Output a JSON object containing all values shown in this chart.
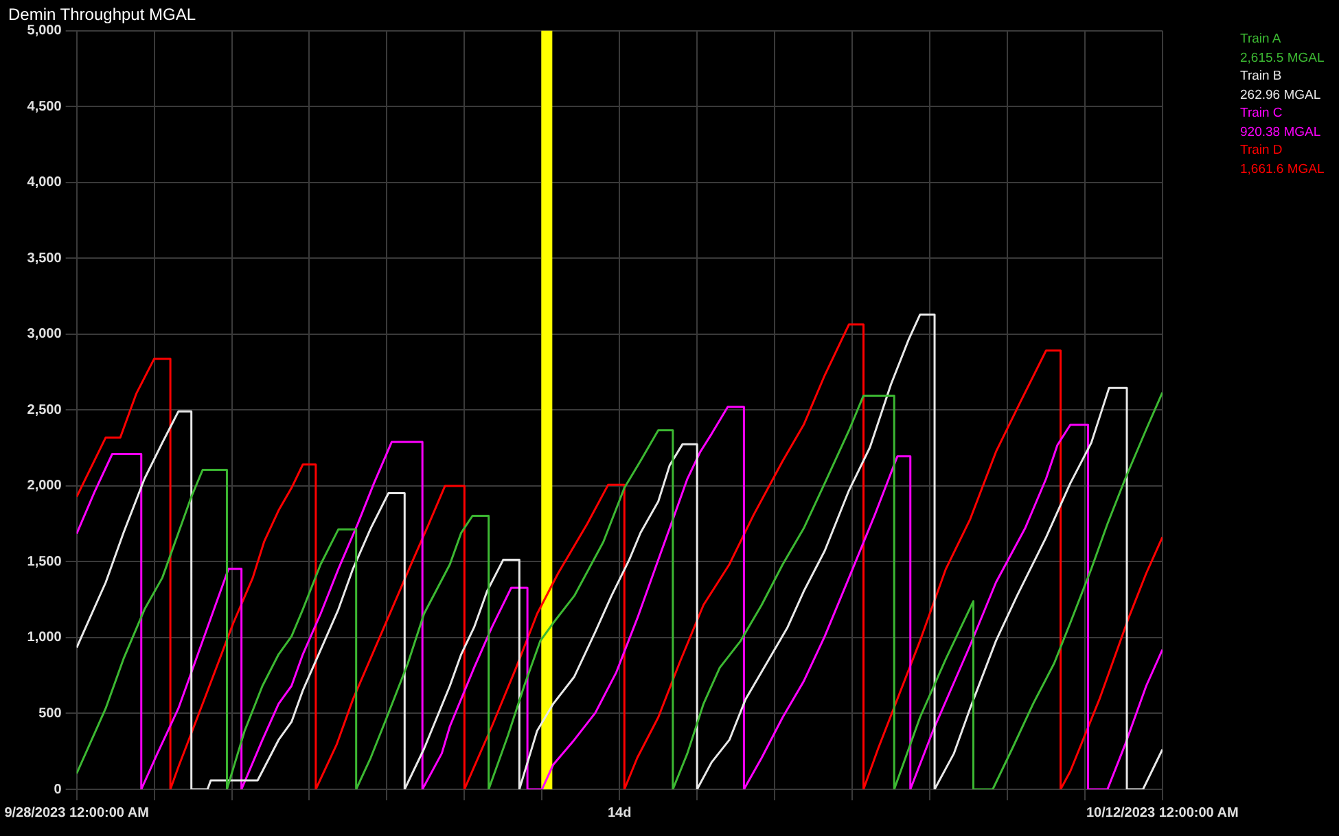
{
  "chart_data": {
    "type": "line",
    "title": "Demin Throughput MGAL",
    "xlim": [
      "2023-09-28T00:00",
      "2023-10-12T00:00"
    ],
    "xticks": [
      {
        "value": "2023-09-28",
        "label": "9/28/2023 12:00:00 AM"
      },
      {
        "value": "2023-09-29",
        "label": null
      },
      {
        "value": "2023-09-30",
        "label": null
      },
      {
        "value": "2023-10-01",
        "label": null
      },
      {
        "value": "2023-10-02",
        "label": null
      },
      {
        "value": "2023-10-03",
        "label": null
      },
      {
        "value": "2023-10-04",
        "label": null
      },
      {
        "value": "2023-10-05",
        "label": "14d"
      },
      {
        "value": "2023-10-06",
        "label": null
      },
      {
        "value": "2023-10-07",
        "label": null
      },
      {
        "value": "2023-10-08",
        "label": null
      },
      {
        "value": "2023-10-09",
        "label": null
      },
      {
        "value": "2023-10-10",
        "label": null
      },
      {
        "value": "2023-10-11",
        "label": null
      },
      {
        "value": "2023-10-12",
        "label": "10/12/2023 12:00:00 AM"
      }
    ],
    "ylim": [
      0,
      5000
    ],
    "yticks": [
      0,
      500,
      {
        "value": 1000,
        "label": "1,000"
      },
      {
        "value": 1500,
        "label": "1,500"
      },
      {
        "value": 2000,
        "label": "2,000"
      },
      {
        "value": 2500,
        "label": "2,500"
      },
      {
        "value": 3000,
        "label": "3,000"
      },
      {
        "value": 3500,
        "label": "3,500"
      },
      {
        "value": 4000,
        "label": "4,000"
      },
      {
        "value": 4500,
        "label": "4,500"
      },
      {
        "value": 5000,
        "label": "5,000"
      }
    ],
    "grid": true,
    "legend": "right",
    "ref_lines": [
      {
        "axis": "x",
        "value": "2023-10-04T01:30",
        "color": "#ffff00"
      }
    ],
    "annotations": [
      "2,615.5 MGAL",
      "262.96 MGAL",
      "920.38 MGAL",
      "1,661.6 MGAL"
    ],
    "series": [
      {
        "name": "Train A",
        "color": "#3cb832",
        "x": [
          "2023-09-28T00:00",
          "2023-09-28T09:00",
          "2023-09-28T14:30",
          "2023-09-28T21:00",
          "2023-09-29T02:30",
          "2023-09-29T07:30",
          "2023-09-29T11:30",
          "2023-09-29T15:00",
          "2023-09-29T22:30",
          "2023-09-29T22:30",
          "2023-09-30T04:00",
          "2023-09-30T09:30",
          "2023-09-30T14:30",
          "2023-09-30T18:30",
          "2023-09-30T22:00",
          "2023-10-01T03:30",
          "2023-10-01T09:00",
          "2023-10-01T14:30",
          "2023-10-01T14:30",
          "2023-10-01T19:00",
          "2023-10-02T00:00",
          "2023-10-02T06:30",
          "2023-10-02T11:30",
          "2023-10-02T19:30",
          "2023-10-02T23:00",
          "2023-10-03T02:30",
          "2023-10-03T07:30",
          "2023-10-03T07:30",
          "2023-10-03T13:30",
          "2023-10-03T18:30",
          "2023-10-03T23:30",
          "2023-10-04T03:30",
          "2023-10-04T10:00",
          "2023-10-04T19:00",
          "2023-10-05T01:30",
          "2023-10-05T06:30",
          "2023-10-05T12:00",
          "2023-10-05T16:30",
          "2023-10-05T16:30",
          "2023-10-05T21:00",
          "2023-10-06T02:00",
          "2023-10-06T07:00",
          "2023-10-06T13:30",
          "2023-10-06T20:00",
          "2023-10-07T02:30",
          "2023-10-07T09:00",
          "2023-10-07T15:30",
          "2023-10-07T23:00",
          "2023-10-08T03:30",
          "2023-10-08T13:00",
          "2023-10-08T13:00",
          "2023-10-08T21:00",
          "2023-10-09T05:00",
          "2023-10-09T13:30",
          "2023-10-09T13:30",
          "2023-10-09T19:30",
          "2023-10-10T01:30",
          "2023-10-10T08:00",
          "2023-10-10T14:30",
          "2023-10-10T19:30",
          "2023-10-11T02:00",
          "2023-10-11T07:00",
          "2023-10-11T12:30",
          "2023-10-11T19:00",
          "2023-10-12T00:00"
        ],
        "values": [
          104,
          534,
          860,
          1186,
          1394,
          1691,
          1928,
          2106,
          2106,
          0,
          386,
          682,
          890,
          1008,
          1186,
          1483,
          1714,
          1714,
          0,
          208,
          475,
          830,
          1157,
          1483,
          1691,
          1803,
          1803,
          0,
          356,
          682,
          979,
          1097,
          1275,
          1631,
          1987,
          2165,
          2367,
          2367,
          0,
          237,
          564,
          801,
          979,
          1216,
          1483,
          1720,
          2017,
          2365,
          2595,
          2595,
          0,
          475,
          860,
          1240,
          0,
          0,
          267,
          564,
          830,
          1097,
          1453,
          1750,
          2047,
          2373,
          2615.5
        ]
      },
      {
        "name": "Train B",
        "color": "#e8e8e8",
        "x": [
          "2023-09-28T00:00",
          "2023-09-28T09:00",
          "2023-09-28T14:30",
          "2023-09-28T21:00",
          "2023-09-29T02:30",
          "2023-09-29T07:30",
          "2023-09-29T11:30",
          "2023-09-29T11:30",
          "2023-09-29T16:30",
          "2023-09-29T17:30",
          "2023-09-30T08:00",
          "2023-09-30T14:30",
          "2023-09-30T18:30",
          "2023-09-30T22:00",
          "2023-10-01T03:30",
          "2023-10-01T09:00",
          "2023-10-01T13:30",
          "2023-10-01T19:00",
          "2023-10-02T00:30",
          "2023-10-02T05:30",
          "2023-10-02T05:30",
          "2023-10-02T11:30",
          "2023-10-02T19:30",
          "2023-10-02T23:00",
          "2023-10-03T03:00",
          "2023-10-03T07:00",
          "2023-10-03T12:00",
          "2023-10-03T17:00",
          "2023-10-03T17:00",
          "2023-10-03T22:30",
          "2023-10-04T03:30",
          "2023-10-04T10:00",
          "2023-10-04T16:30",
          "2023-10-04T21:30",
          "2023-10-05T03:00",
          "2023-10-05T06:30",
          "2023-10-05T12:00",
          "2023-10-05T15:30",
          "2023-10-05T19:30",
          "2023-10-06T00:00",
          "2023-10-06T00:00",
          "2023-10-06T04:30",
          "2023-10-06T10:00",
          "2023-10-06T15:00",
          "2023-10-06T21:30",
          "2023-10-07T04:00",
          "2023-10-07T09:00",
          "2023-10-07T15:30",
          "2023-10-07T23:00",
          "2023-10-08T05:30",
          "2023-10-08T12:00",
          "2023-10-08T17:30",
          "2023-10-08T21:00",
          "2023-10-09T01:30",
          "2023-10-09T01:30",
          "2023-10-09T07:30",
          "2023-10-09T12:30",
          "2023-10-09T20:30",
          "2023-10-10T03:00",
          "2023-10-10T12:00",
          "2023-10-10T19:30",
          "2023-10-11T02:00",
          "2023-10-11T07:30",
          "2023-10-11T13:00",
          "2023-10-11T13:00",
          "2023-10-11T18:00",
          "2023-10-12T00:00"
        ],
        "values": [
          934,
          1364,
          1691,
          2047,
          2284,
          2491,
          2491,
          0,
          0,
          59,
          59,
          326,
          445,
          652,
          919,
          1186,
          1453,
          1720,
          1952,
          1952,
          0,
          267,
          682,
          890,
          1068,
          1305,
          1513,
          1513,
          0,
          386,
          564,
          742,
          1038,
          1275,
          1513,
          1691,
          1898,
          2135,
          2275,
          2275,
          0,
          178,
          326,
          593,
          830,
          1068,
          1305,
          1572,
          1970,
          2254,
          2669,
          2966,
          3129,
          3129,
          0,
          237,
          534,
          979,
          1275,
          1661,
          2017,
          2284,
          2646,
          2646,
          0,
          0,
          262.96
        ]
      },
      {
        "name": "Train C",
        "color": "#ff00ff",
        "x": [
          "2023-09-28T00:00",
          "2023-09-28T05:30",
          "2023-09-28T11:00",
          "2023-09-28T20:00",
          "2023-09-28T20:00",
          "2023-09-29T01:00",
          "2023-09-29T07:30",
          "2023-09-29T12:30",
          "2023-09-29T18:00",
          "2023-09-29T23:00",
          "2023-09-30T03:00",
          "2023-09-30T03:00",
          "2023-09-30T09:30",
          "2023-09-30T14:30",
          "2023-09-30T18:30",
          "2023-09-30T22:00",
          "2023-10-01T03:30",
          "2023-10-01T09:00",
          "2023-10-01T15:00",
          "2023-10-01T20:00",
          "2023-10-02T01:30",
          "2023-10-02T11:00",
          "2023-10-02T11:00",
          "2023-10-02T17:00",
          "2023-10-02T19:30",
          "2023-10-03T03:00",
          "2023-10-03T08:30",
          "2023-10-03T14:30",
          "2023-10-03T19:30",
          "2023-10-03T19:30",
          "2023-10-04T00:00",
          "2023-10-04T03:30",
          "2023-10-04T10:00",
          "2023-10-04T16:30",
          "2023-10-04T23:00",
          "2023-10-05T05:30",
          "2023-10-05T12:00",
          "2023-10-05T17:00",
          "2023-10-05T21:00",
          "2023-10-06T01:00",
          "2023-10-06T04:30",
          "2023-10-06T09:30",
          "2023-10-06T14:30",
          "2023-10-06T14:30",
          "2023-10-06T20:00",
          "2023-10-07T02:30",
          "2023-10-07T09:00",
          "2023-10-07T15:30",
          "2023-10-07T23:00",
          "2023-10-08T07:00",
          "2023-10-08T14:00",
          "2023-10-08T18:00",
          "2023-10-08T18:00",
          "2023-10-09T01:00",
          "2023-10-09T12:30",
          "2023-10-09T20:30",
          "2023-10-10T05:30",
          "2023-10-10T12:00",
          "2023-10-10T15:30",
          "2023-10-10T19:30",
          "2023-10-11T01:00",
          "2023-10-11T01:00",
          "2023-10-11T07:00",
          "2023-10-11T12:30",
          "2023-10-11T19:00",
          "2023-10-12T00:00"
        ],
        "values": [
          1685,
          1958,
          2210,
          2210,
          0,
          237,
          534,
          830,
          1157,
          1453,
          1453,
          0,
          326,
          564,
          682,
          890,
          1157,
          1453,
          1750,
          2017,
          2290,
          2290,
          0,
          237,
          415,
          801,
          1068,
          1329,
          1329,
          0,
          0,
          163,
          326,
          504,
          771,
          1127,
          1513,
          1809,
          2047,
          2225,
          2343,
          2521,
          2521,
          0,
          208,
          475,
          712,
          1008,
          1394,
          1809,
          2195,
          2195,
          0,
          386,
          949,
          1364,
          1720,
          2047,
          2269,
          2402,
          2402,
          0,
          0,
          297,
          682,
          920.38
        ]
      },
      {
        "name": "Train D",
        "color": "#ff0000",
        "x": [
          "2023-09-28T00:00",
          "2023-09-28T09:00",
          "2023-09-28T13:30",
          "2023-09-28T18:30",
          "2023-09-29T00:00",
          "2023-09-29T05:00",
          "2023-09-29T05:00",
          "2023-09-29T07:30",
          "2023-09-29T15:00",
          "2023-09-30T00:30",
          "2023-09-30T06:30",
          "2023-09-30T10:00",
          "2023-09-30T14:30",
          "2023-09-30T18:30",
          "2023-09-30T22:00",
          "2023-10-01T02:00",
          "2023-10-01T02:00",
          "2023-10-01T08:30",
          "2023-10-01T13:30",
          "2023-10-01T22:30",
          "2023-10-02T07:30",
          "2023-10-02T13:00",
          "2023-10-02T18:00",
          "2023-10-03T00:00",
          "2023-10-03T00:00",
          "2023-10-03T03:00",
          "2023-10-03T08:30",
          "2023-10-03T16:00",
          "2023-10-03T22:30",
          "2023-10-04T05:00",
          "2023-10-04T14:00",
          "2023-10-04T20:30",
          "2023-10-05T01:30",
          "2023-10-05T01:30",
          "2023-10-05T05:30",
          "2023-10-05T12:00",
          "2023-10-05T18:30",
          "2023-10-06T02:00",
          "2023-10-06T10:00",
          "2023-10-06T17:30",
          "2023-10-07T02:30",
          "2023-10-07T09:00",
          "2023-10-07T15:30",
          "2023-10-07T23:00",
          "2023-10-08T03:30",
          "2023-10-08T03:30",
          "2023-10-08T08:00",
          "2023-10-08T14:30",
          "2023-10-08T21:00",
          "2023-10-09T05:00",
          "2023-10-09T12:30",
          "2023-10-09T20:30",
          "2023-10-10T04:00",
          "2023-10-10T12:00",
          "2023-10-10T16:30",
          "2023-10-10T16:30",
          "2023-10-10T19:30",
          "2023-10-11T04:30",
          "2023-10-11T13:30",
          "2023-10-11T19:00",
          "2023-10-12T00:00"
        ],
        "values": [
          1928,
          2319,
          2319,
          2610,
          2838,
          2838,
          0,
          148,
          564,
          1097,
          1394,
          1631,
          1839,
          1987,
          2141,
          2141,
          0,
          297,
          593,
          1038,
          1483,
          1750,
          2000,
          2000,
          0,
          148,
          415,
          801,
          1157,
          1424,
          1750,
          2008,
          2008,
          0,
          208,
          475,
          830,
          1216,
          1483,
          1809,
          2165,
          2403,
          2729,
          3064,
          3064,
          0,
          267,
          623,
          979,
          1453,
          1780,
          2225,
          2551,
          2892,
          2892,
          0,
          119,
          593,
          1127,
          1424,
          1661.6
        ]
      }
    ]
  }
}
